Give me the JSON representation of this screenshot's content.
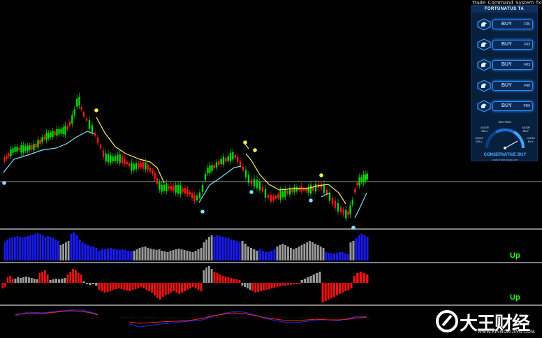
{
  "window": {
    "title": "Trade_Command_System_fx©"
  },
  "panel": {
    "header": "FORTUNATUS TA",
    "signals": [
      {
        "label": "BUY",
        "timeframe": "F05"
      },
      {
        "label": "BUY",
        "timeframe": "F03"
      },
      {
        "label": "BUY",
        "timeframe": "F03"
      },
      {
        "label": "BUY",
        "timeframe": "F60"
      },
      {
        "label": "BUY",
        "timeframe": "F0H"
      }
    ],
    "gauge": {
      "neutral": "NEUTRAL",
      "agg_sell": "AGGR SELL",
      "agg_buy": "AGGR BUY",
      "cons_sell": "CONS SELL",
      "cons_buy": "CONS BUY",
      "signal": "CONSERVATIVE BUY",
      "site": "www.tradeology.com"
    }
  },
  "indicators": {
    "up_label_1": "Up",
    "up_label_2": "Up"
  },
  "watermark": {
    "brand": "大王财经",
    "site": "WWW.KINGCAIJING.COM"
  },
  "colors": {
    "bull": "#00dd00",
    "bear": "#ff1a1a",
    "ma_fast": "#7fe0ff",
    "ma_slow": "#ffee55",
    "hist_blue": "#1a1aff",
    "hist_gray": "#9a9a9a",
    "hist_red": "#ee1111"
  }
}
